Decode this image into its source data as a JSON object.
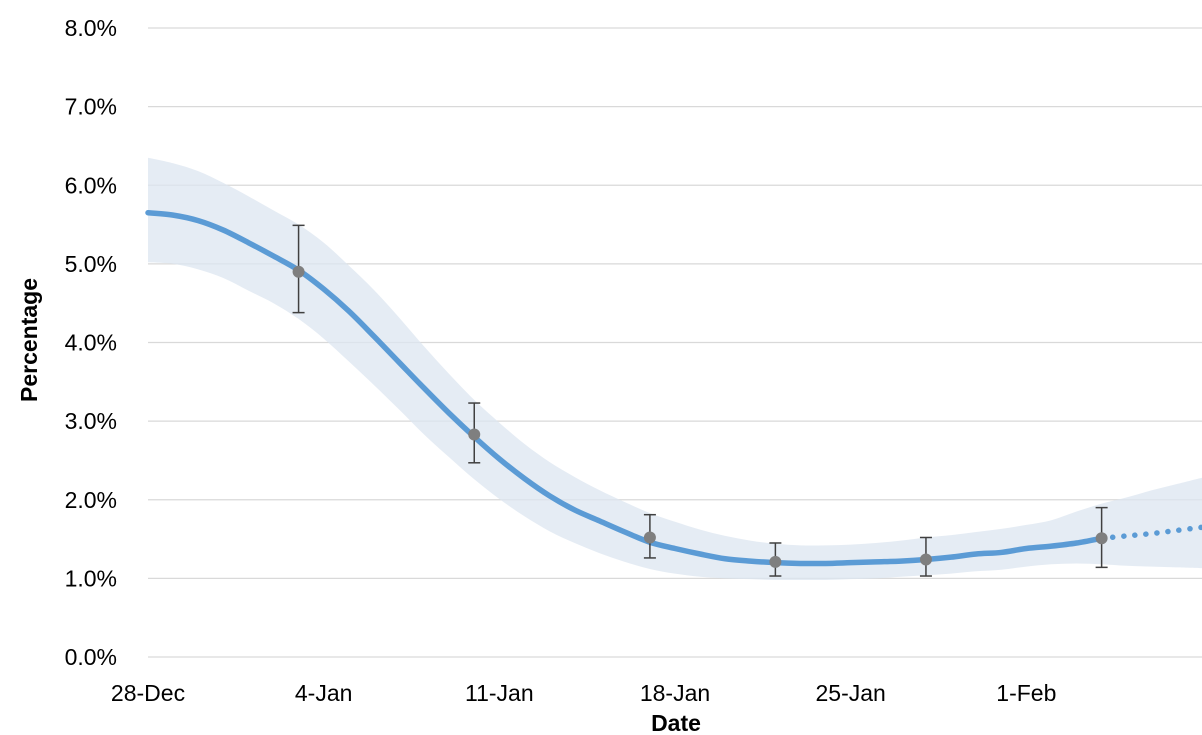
{
  "chart_data": {
    "type": "line",
    "title": "",
    "xlabel": "Date",
    "ylabel": "Percentage",
    "x_tick_labels": [
      "28-Dec",
      "4-Jan",
      "11-Jan",
      "18-Jan",
      "25-Jan",
      "1-Feb"
    ],
    "y_tick_labels": [
      "0.0%",
      "1.0%",
      "2.0%",
      "3.0%",
      "4.0%",
      "5.0%",
      "6.0%",
      "7.0%",
      "8.0%"
    ],
    "xlim": [
      "2020-12-28",
      "2021-02-08"
    ],
    "ylim": [
      0,
      8
    ],
    "y_unit": "%",
    "grid": "horizontal",
    "legend": "none",
    "colors": {
      "line": "#5b9bd5",
      "band": "#dce6f0",
      "points": "#7f7f7f",
      "grid": "#d9d9d9"
    },
    "series": [
      {
        "kind": "modelled-estimate",
        "style": "solid",
        "x": [
          "2020-12-28",
          "2020-12-29",
          "2020-12-30",
          "2020-12-31",
          "2021-01-01",
          "2021-01-02",
          "2021-01-03",
          "2021-01-04",
          "2021-01-05",
          "2021-01-06",
          "2021-01-07",
          "2021-01-08",
          "2021-01-09",
          "2021-01-10",
          "2021-01-11",
          "2021-01-12",
          "2021-01-13",
          "2021-01-14",
          "2021-01-15",
          "2021-01-16",
          "2021-01-17",
          "2021-01-18",
          "2021-01-19",
          "2021-01-20",
          "2021-01-21",
          "2021-01-22",
          "2021-01-23",
          "2021-01-24",
          "2021-01-25",
          "2021-01-26",
          "2021-01-27",
          "2021-01-28",
          "2021-01-29",
          "2021-01-30",
          "2021-01-31",
          "2021-02-01",
          "2021-02-02",
          "2021-02-03",
          "2021-02-04"
        ],
        "y": [
          5.65,
          5.62,
          5.55,
          5.43,
          5.27,
          5.1,
          4.92,
          4.68,
          4.4,
          4.08,
          3.75,
          3.42,
          3.1,
          2.8,
          2.52,
          2.27,
          2.05,
          1.87,
          1.73,
          1.59,
          1.46,
          1.38,
          1.31,
          1.25,
          1.22,
          1.2,
          1.19,
          1.19,
          1.2,
          1.21,
          1.22,
          1.24,
          1.27,
          1.31,
          1.33,
          1.38,
          1.41,
          1.45,
          1.51
        ],
        "lower": [
          5.02,
          5.0,
          4.93,
          4.82,
          4.66,
          4.5,
          4.3,
          4.05,
          3.76,
          3.46,
          3.15,
          2.83,
          2.54,
          2.26,
          2.01,
          1.79,
          1.6,
          1.45,
          1.32,
          1.21,
          1.12,
          1.06,
          1.02,
          1.0,
          0.99,
          0.98,
          0.98,
          0.98,
          0.99,
          1.0,
          1.02,
          1.04,
          1.06,
          1.09,
          1.11,
          1.15,
          1.18,
          1.19,
          1.18
        ],
        "upper": [
          6.35,
          6.28,
          6.18,
          6.03,
          5.86,
          5.68,
          5.5,
          5.27,
          4.98,
          4.67,
          4.32,
          3.95,
          3.6,
          3.27,
          2.98,
          2.71,
          2.48,
          2.29,
          2.12,
          1.97,
          1.83,
          1.72,
          1.62,
          1.54,
          1.48,
          1.44,
          1.42,
          1.42,
          1.43,
          1.45,
          1.48,
          1.52,
          1.55,
          1.59,
          1.63,
          1.68,
          1.74,
          1.85,
          1.95
        ]
      },
      {
        "kind": "modelled-estimate-extension",
        "style": "dotted",
        "x": [
          "2021-02-04",
          "2021-02-05",
          "2021-02-06",
          "2021-02-07",
          "2021-02-08"
        ],
        "y": [
          1.51,
          1.54,
          1.57,
          1.61,
          1.65
        ],
        "lower": [
          1.18,
          1.16,
          1.15,
          1.14,
          1.13
        ],
        "upper": [
          1.95,
          2.03,
          2.12,
          2.2,
          2.28
        ]
      },
      {
        "kind": "official-estimate",
        "style": "markers-with-errorbars",
        "x": [
          "2021-01-03",
          "2021-01-10",
          "2021-01-17",
          "2021-01-22",
          "2021-01-28",
          "2021-02-04"
        ],
        "y": [
          4.9,
          2.83,
          1.52,
          1.21,
          1.24,
          1.51
        ],
        "lower": [
          4.38,
          2.47,
          1.26,
          1.03,
          1.03,
          1.14
        ],
        "upper": [
          5.49,
          3.23,
          1.81,
          1.45,
          1.52,
          1.9
        ]
      }
    ]
  }
}
